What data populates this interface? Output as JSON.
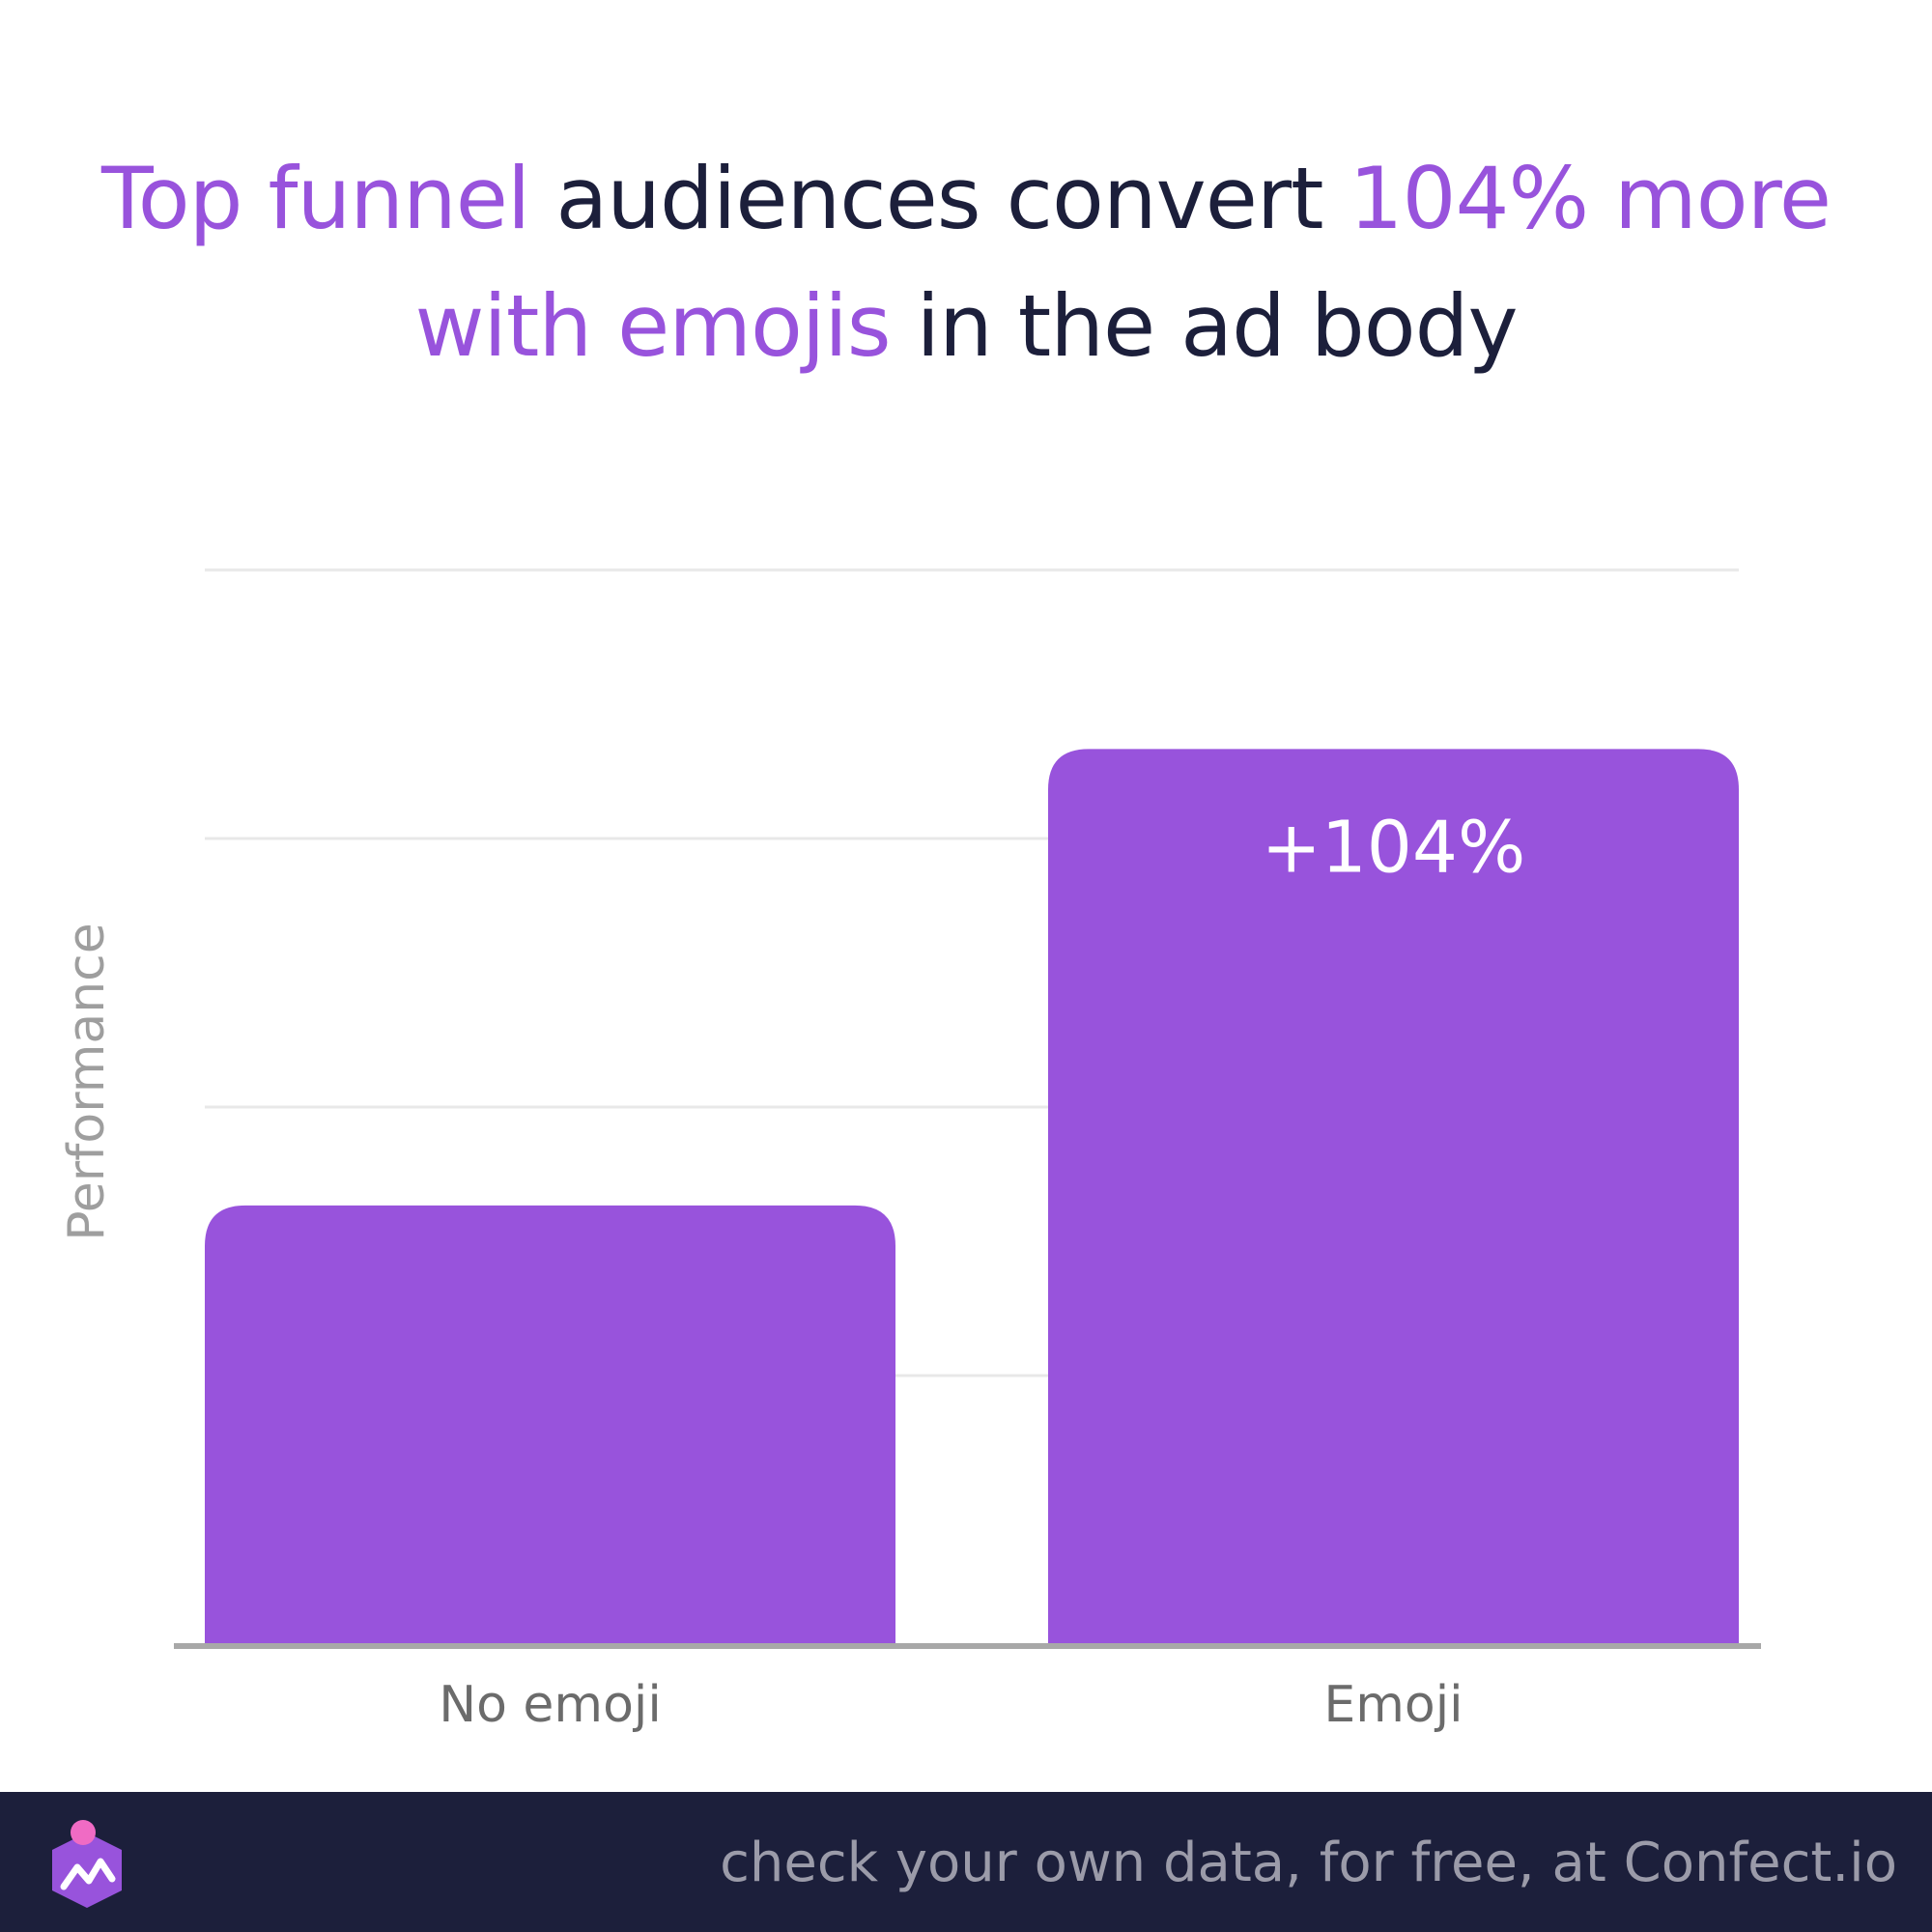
{
  "title": {
    "segments": [
      {
        "text": "Top funnel",
        "highlight": true
      },
      {
        "text": " audiences convert ",
        "highlight": false
      },
      {
        "text": "104% more",
        "highlight": true
      },
      {
        "text": " ",
        "highlight": false
      },
      {
        "text": "with emojis",
        "highlight": true
      },
      {
        "text": " in the ad body",
        "highlight": false
      }
    ]
  },
  "colors": {
    "accent": "#9853dc",
    "text_dark": "#1c1f3b",
    "axis_label": "#9e9e9e",
    "tick_label": "#6b6b6b",
    "footer_bg": "#1c1f3b",
    "footer_text": "#9b9ba9",
    "grid": "#e8e8e8",
    "baseline": "#a8a8a8",
    "logo_dot": "#f06bc4"
  },
  "chart_data": {
    "type": "bar",
    "categories": [
      "No emoji",
      "Emoji"
    ],
    "values": [
      49,
      100.0
    ],
    "ylabel": "Performance",
    "xlabel": "",
    "ylim": [
      0,
      120
    ],
    "grid": true,
    "data_labels": [
      "",
      "+104%"
    ]
  },
  "footer": {
    "text": "check your own data, for free, at Confect.io",
    "logo_icon": "confect-logo-icon"
  }
}
